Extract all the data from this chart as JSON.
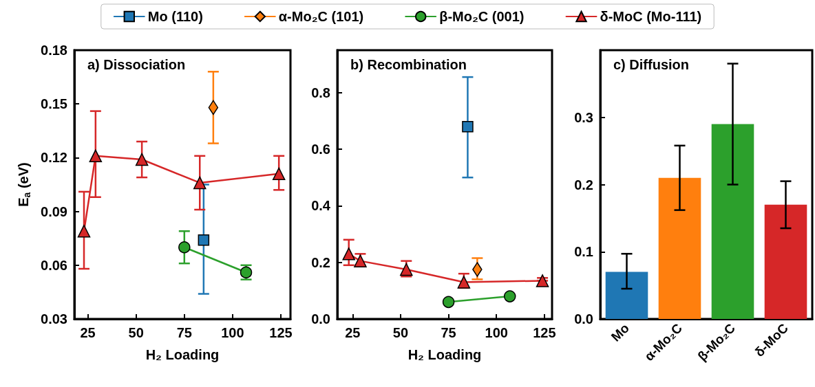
{
  "chart_data": [
    {
      "type": "line",
      "title": "a) Dissociation",
      "xlabel": "H₂ Loading",
      "ylabel": "E$_{a}$ (eV)",
      "legend": "top",
      "xlim": [
        18,
        130
      ],
      "xticks": [
        25,
        50,
        75,
        100,
        125
      ],
      "ylim": [
        0.03,
        0.18
      ],
      "yticks": [
        0.03,
        0.06,
        0.09,
        0.12,
        0.15,
        0.18
      ],
      "series": [
        {
          "name": "Mo (110)",
          "color": "#1f77b4",
          "marker": "square",
          "x": [
            85
          ],
          "values": [
            0.074
          ],
          "errors": [
            [
              0.044,
              0.105
            ]
          ]
        },
        {
          "name": "α-Mo₂C (101)",
          "color": "#ff7f0e",
          "marker": "diamond",
          "x": [
            90
          ],
          "values": [
            0.148
          ],
          "errors": [
            [
              0.128,
              0.168
            ]
          ]
        },
        {
          "name": "β-Mo₂C (001)",
          "color": "#2ca02c",
          "marker": "circle",
          "x": [
            75,
            107
          ],
          "values": [
            0.07,
            0.056
          ],
          "errors": [
            [
              0.061,
              0.079
            ],
            [
              0.052,
              0.06
            ]
          ]
        },
        {
          "name": "δ-MoC (Mo-111)",
          "color": "#d62728",
          "marker": "triangle",
          "x": [
            23,
            29,
            53,
            83,
            124
          ],
          "values": [
            0.079,
            0.121,
            0.119,
            0.106,
            0.111
          ],
          "errors": [
            [
              0.058,
              0.101
            ],
            [
              0.098,
              0.146
            ],
            [
              0.109,
              0.129
            ],
            [
              0.091,
              0.121
            ],
            [
              0.102,
              0.121
            ]
          ]
        }
      ]
    },
    {
      "type": "line",
      "title": "b) Recombination",
      "xlabel": "H₂ Loading",
      "xlim": [
        17,
        129
      ],
      "xticks": [
        25,
        50,
        75,
        100,
        125
      ],
      "ylim": [
        0,
        0.95
      ],
      "yticks": [
        {
          "value": 0,
          "label": "0.0"
        },
        0.2,
        0.4,
        0.6,
        0.8
      ],
      "series": [
        {
          "color": "#1f77b4",
          "marker": "square",
          "x": [
            85
          ],
          "values": [
            0.68
          ],
          "errors": [
            [
              0.5,
              0.855
            ]
          ]
        },
        {
          "color": "#ff7f0e",
          "marker": "diamond",
          "x": [
            90
          ],
          "values": [
            0.175
          ],
          "errors": [
            [
              0.14,
              0.215
            ]
          ]
        },
        {
          "color": "#2ca02c",
          "marker": "circle",
          "x": [
            75,
            107
          ],
          "values": [
            0.06,
            0.08
          ]
        },
        {
          "color": "#d62728",
          "marker": "triangle",
          "x": [
            23,
            29,
            53,
            83,
            124
          ],
          "values": [
            0.23,
            0.205,
            0.175,
            0.13,
            0.135
          ],
          "errors": [
            [
              0.19,
              0.28
            ],
            [
              0.19,
              0.23
            ],
            [
              0.15,
              0.205
            ],
            [
              0.11,
              0.16
            ],
            [
              0.135,
              0.145
            ]
          ]
        }
      ]
    },
    {
      "type": "bar",
      "title": "c) Diffusion",
      "categories": [
        "Mo",
        "α-Mo₂C",
        "β-Mo₂C",
        "δ-MoC"
      ],
      "values": [
        0.07,
        0.21,
        0.29,
        0.17
      ],
      "colors": [
        "#1f77b4",
        "#ff7f0e",
        "#2ca02c",
        "#d62728"
      ],
      "errors": [
        [
          0.045,
          0.097
        ],
        [
          0.162,
          0.258
        ],
        [
          0.2,
          0.38
        ],
        [
          0.135,
          0.205
        ]
      ],
      "ylim": [
        0,
        0.4
      ],
      "yticks": [
        {
          "value": 0,
          "label": "0.0"
        },
        0.1,
        0.2,
        0.3
      ]
    }
  ]
}
